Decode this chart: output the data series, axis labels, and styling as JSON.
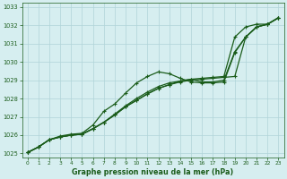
{
  "background_color": "#d6eef0",
  "grid_color": "#b0d4d8",
  "line_color": "#1a5c1a",
  "title": "Graphe pression niveau de la mer (hPa)",
  "xlim": [
    -0.5,
    23.5
  ],
  "ylim": [
    1024.8,
    1033.2
  ],
  "yticks": [
    1025,
    1026,
    1027,
    1028,
    1029,
    1030,
    1031,
    1032,
    1033
  ],
  "xticks": [
    0,
    1,
    2,
    3,
    4,
    5,
    6,
    7,
    8,
    9,
    10,
    11,
    12,
    13,
    14,
    15,
    16,
    17,
    18,
    19,
    20,
    21,
    22,
    23
  ],
  "series": [
    [
      1025.05,
      1025.35,
      1025.75,
      1025.9,
      1026.0,
      1026.05,
      1026.35,
      1026.7,
      1027.1,
      1027.55,
      1027.9,
      1028.25,
      1028.55,
      1028.75,
      1028.9,
      1029.0,
      1029.05,
      1029.1,
      1029.15,
      1029.2,
      1031.35,
      1031.9,
      1032.05,
      1032.4
    ],
    [
      1025.05,
      1025.35,
      1025.75,
      1025.9,
      1026.0,
      1026.05,
      1026.35,
      1026.7,
      1027.1,
      1027.55,
      1027.9,
      1028.25,
      1028.55,
      1028.75,
      1028.95,
      1029.05,
      1029.1,
      1029.15,
      1029.2,
      1031.35,
      1031.9,
      1032.05,
      1032.05,
      1032.4
    ],
    [
      1025.05,
      1025.35,
      1025.75,
      1025.9,
      1026.0,
      1026.05,
      1026.35,
      1026.7,
      1027.15,
      1027.6,
      1028.0,
      1028.35,
      1028.65,
      1028.85,
      1028.95,
      1029.05,
      1028.9,
      1028.9,
      1029.0,
      1030.55,
      1031.35,
      1031.9,
      1032.05,
      1032.4
    ],
    [
      1025.05,
      1025.35,
      1025.75,
      1025.95,
      1026.05,
      1026.1,
      1026.55,
      1027.3,
      1027.7,
      1028.3,
      1028.85,
      1029.2,
      1029.45,
      1029.35,
      1029.1,
      1028.9,
      1028.85,
      1028.85,
      1028.9,
      1030.5,
      1031.35,
      1031.9,
      1032.05,
      1032.4
    ]
  ],
  "marker": "+",
  "markersize": 3.5,
  "linewidth": 0.9
}
